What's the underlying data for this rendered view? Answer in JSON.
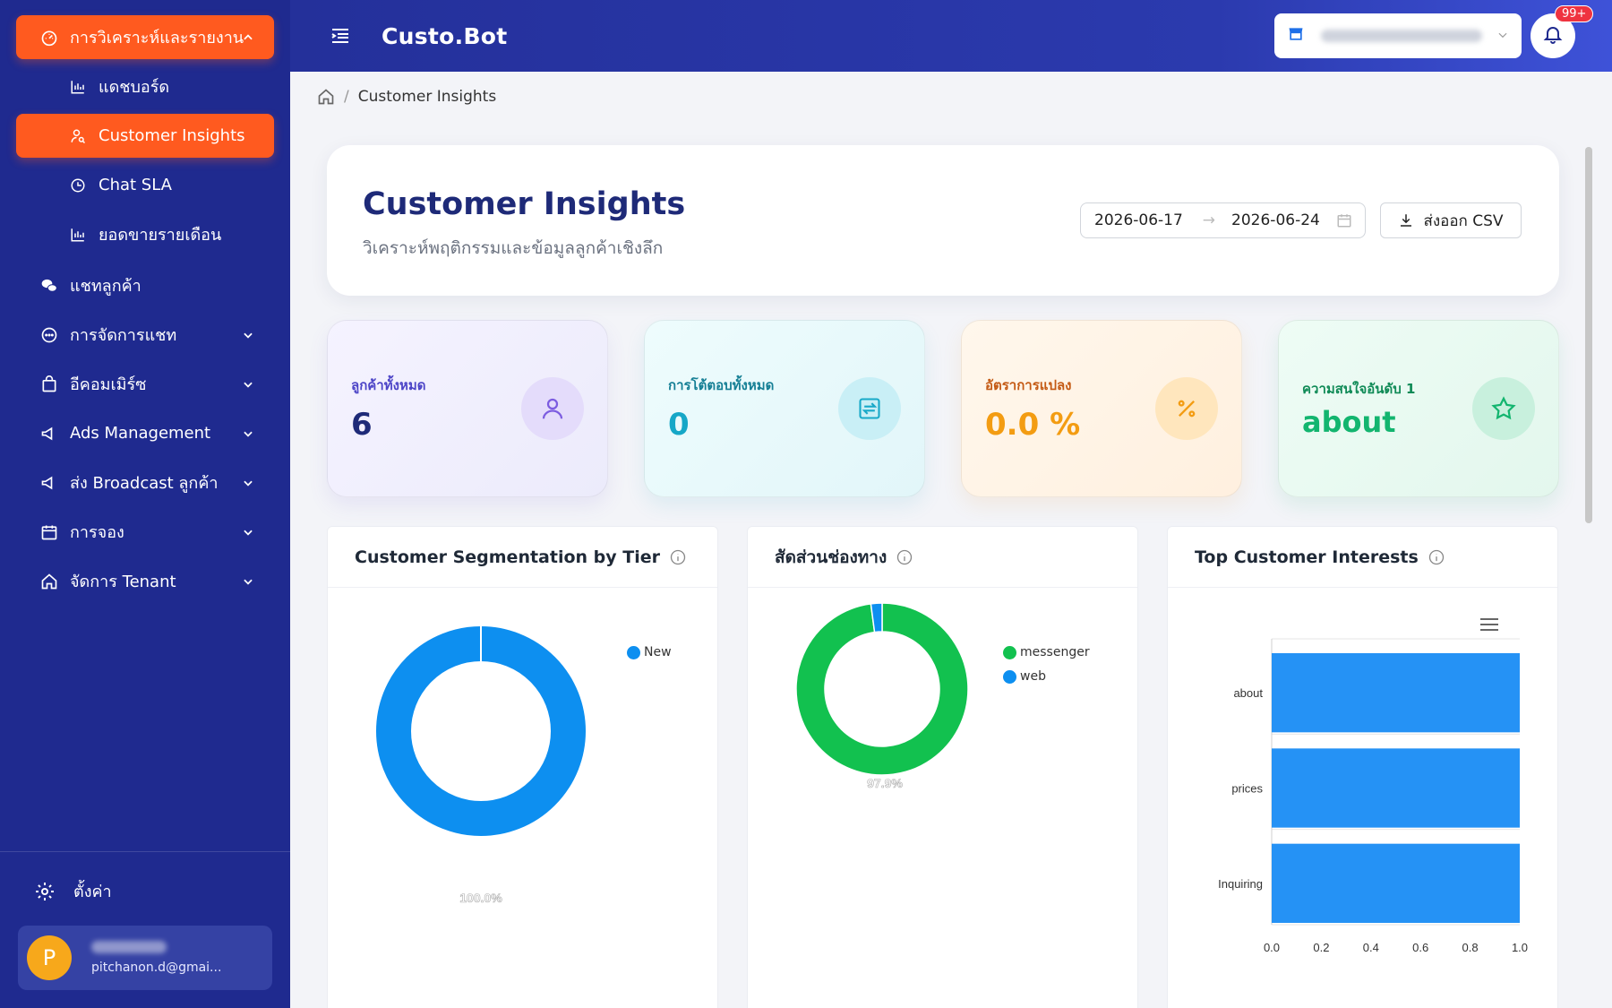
{
  "sidebar": {
    "group_label": "การวิเคราะห์และรายงาน",
    "sub_items": [
      {
        "label": "แดชบอร์ด",
        "icon": "bar-chart-icon"
      },
      {
        "label": "Customer Insights",
        "icon": "user-search-icon"
      },
      {
        "label": "Chat SLA",
        "icon": "clock-chart-icon"
      },
      {
        "label": "ยอดขายรายเดือน",
        "icon": "bar-chart-icon"
      }
    ],
    "items": [
      {
        "label": "แชทลูกค้า",
        "icon": "wechat-icon"
      },
      {
        "label": "การจัดการแชท",
        "icon": "chat-bubble-icon"
      },
      {
        "label": "อีคอมเมิร์ซ",
        "icon": "shopping-bag-icon"
      },
      {
        "label": "Ads Management",
        "icon": "megaphone-icon"
      },
      {
        "label": "ส่ง Broadcast ลูกค้า",
        "icon": "megaphone-icon"
      },
      {
        "label": "การจอง",
        "icon": "calendar-icon"
      },
      {
        "label": "จัดการ Tenant",
        "icon": "home-icon"
      }
    ],
    "settings_label": "ตั้งค่า",
    "user": {
      "initial": "P",
      "email": "pitchanon.d@gmai..."
    }
  },
  "header": {
    "brand": "Custo.Bot",
    "notifications_badge": "99+"
  },
  "breadcrumb": {
    "current": "Customer Insights"
  },
  "hero": {
    "title": "Customer Insights",
    "subtitle": "วิเคราะห์พฤติกรรมและข้อมูลลูกค้าเชิงลึก",
    "date_start": "2026-06-17",
    "date_end": "2026-06-24",
    "export_label": "ส่งออก CSV"
  },
  "stats": [
    {
      "label": "ลูกค้าทั้งหมด",
      "value": "6",
      "icon": "user-icon"
    },
    {
      "label": "การโต้ตอบทั้งหมด",
      "value": "0",
      "icon": "repeat-icon"
    },
    {
      "label": "อัตราการแปลง",
      "value": "0.0 %",
      "icon": "percent-icon"
    },
    {
      "label": "ความสนใจอันดับ 1",
      "value": "about",
      "icon": "star-icon"
    }
  ],
  "cards": {
    "segmentation_title": "Customer Segmentation by Tier",
    "channel_title": "สัดส่วนช่องทาง",
    "interests_title": "Top Customer Interests"
  },
  "chart_data": [
    {
      "type": "pie",
      "title": "Customer Segmentation by Tier",
      "labels": [
        "New"
      ],
      "values": [
        100.0
      ],
      "data_labels": [
        "100.0%"
      ],
      "colors": [
        "#0d8ff0"
      ],
      "legend": "top-right"
    },
    {
      "type": "pie",
      "title": "สัดส่วนช่องทาง",
      "labels": [
        "messenger",
        "web"
      ],
      "values": [
        97.9,
        2.1
      ],
      "data_labels": [
        "97.9%"
      ],
      "colors": [
        "#12c14f",
        "#0d8ff0"
      ],
      "legend": "top-right"
    },
    {
      "type": "bar",
      "orientation": "horizontal",
      "title": "Top Customer Interests",
      "categories": [
        "about",
        "prices",
        "Inquiring"
      ],
      "values": [
        1.0,
        1.0,
        1.0
      ],
      "x_ticks": [
        "0.0",
        "0.2",
        "0.4",
        "0.6",
        "0.8",
        "1.0"
      ],
      "xlim": [
        0,
        1.0
      ],
      "color": "#2592f5",
      "grid": true
    }
  ]
}
